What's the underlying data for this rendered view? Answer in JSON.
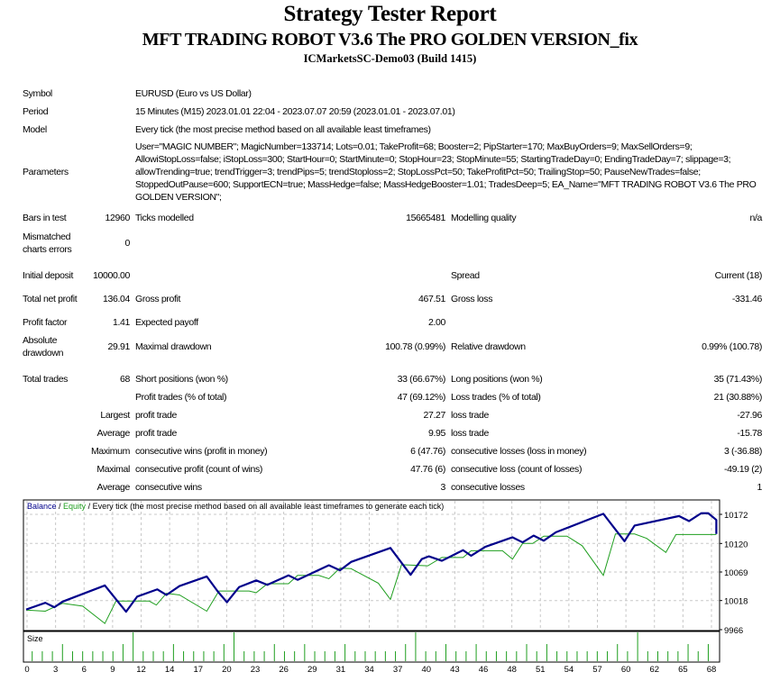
{
  "header": {
    "title": "Strategy Tester Report",
    "expert": "MFT TRADING ROBOT V3.6 The PRO GOLDEN VERSION_fix",
    "server": "ICMarketsSC-Demo03 (Build 1415)"
  },
  "settings": {
    "symbol_label": "Symbol",
    "symbol": "EURUSD (Euro vs US Dollar)",
    "period_label": "Period",
    "period": "15 Minutes (M15) 2023.01.01 22:04 - 2023.07.07 20:59 (2023.01.01 - 2023.07.01)",
    "model_label": "Model",
    "model": "Every tick (the most precise method based on all available least timeframes)",
    "parameters_label": "Parameters",
    "parameters": "User=\"MAGIC NUMBER\"; MagicNumber=133714; Lots=0.01; TakeProfit=68; Booster=2; PipStarter=170; MaxBuyOrders=9; MaxSellOrders=9; AllowiStopLoss=false; iStopLoss=300; StartHour=0; StartMinute=0; StopHour=23; StopMinute=55; StartingTradeDay=0; EndingTradeDay=7; slippage=3; allowTrending=true; trendTrigger=3; trendPips=5; trendStoploss=2; StopLossPct=50; TakeProfitPct=50; TrailingStop=50; PauseNewTrades=false; StoppedOutPause=600; SupportECN=true; MassHedge=false; MassHedgeBooster=1.01; TradesDeep=5; EA_Name=\"MFT TRADING ROBOT V3.6 The PRO GOLDEN VERSION\";"
  },
  "stats": {
    "bars_label": "Bars in test",
    "bars": "12960",
    "ticks_label": "Ticks modelled",
    "ticks": "15665481",
    "quality_label": "Modelling quality",
    "quality": "n/a",
    "mismatch_label": "Mismatched charts errors",
    "mismatch": "0",
    "deposit_label": "Initial deposit",
    "deposit": "10000.00",
    "spread_label": "Spread",
    "spread": "Current (18)",
    "net_label": "Total net profit",
    "net": "136.04",
    "gross_profit_label": "Gross profit",
    "gross_profit": "467.51",
    "gross_loss_label": "Gross loss",
    "gross_loss": "-331.46",
    "pf_label": "Profit factor",
    "pf": "1.41",
    "payoff_label": "Expected payoff",
    "payoff": "2.00",
    "abs_dd_label": "Absolute drawdown",
    "abs_dd": "29.91",
    "max_dd_label": "Maximal drawdown",
    "max_dd": "100.78 (0.99%)",
    "rel_dd_label": "Relative drawdown",
    "rel_dd": "0.99% (100.78)",
    "trades_label": "Total trades",
    "trades": "68",
    "short_label": "Short positions (won %)",
    "short": "33 (66.67%)",
    "long_label": "Long positions (won %)",
    "long": "35 (71.43%)",
    "profit_trades_label": "Profit trades (% of total)",
    "profit_trades": "47 (69.12%)",
    "loss_trades_label": "Loss trades (% of total)",
    "loss_trades": "21 (30.88%)",
    "largest": "Largest",
    "largest_profit_label": "profit trade",
    "largest_profit": "27.27",
    "largest_loss_label": "loss trade",
    "largest_loss": "-27.96",
    "average": "Average",
    "avg_profit_label": "profit trade",
    "avg_profit": "9.95",
    "avg_loss_label": "loss trade",
    "avg_loss": "-15.78",
    "maximum": "Maximum",
    "max_wins_label": "consecutive wins (profit in money)",
    "max_wins": "6 (47.76)",
    "max_losses_label": "consecutive losses (loss in money)",
    "max_losses": "3 (-36.88)",
    "maximal": "Maximal",
    "max_profit_label": "consecutive profit (count of wins)",
    "max_profit": "47.76 (6)",
    "max_loss_label": "consecutive loss (count of losses)",
    "max_loss": "-49.19 (2)",
    "average2": "Average",
    "avg_wins_label": "consecutive wins",
    "avg_wins": "3",
    "avg_losses_label": "consecutive losses",
    "avg_losses": "1"
  },
  "chart_data": {
    "type": "line",
    "legend": {
      "balance": "Balance",
      "sep1": " / ",
      "equity": "Equity",
      "rest": " / Every tick (the most precise method based on all available least timeframes to generate each tick)"
    },
    "colors": {
      "balance": "#00008b",
      "equity": "#1e9e1e",
      "size": "#1e9e1e",
      "grid": "#c8c8c8"
    },
    "ylim": [
      9966,
      10172
    ],
    "yticks": [
      "10172",
      "10120",
      "10069",
      "10018",
      "9966"
    ],
    "ytick_values": [
      10172,
      10120,
      10069,
      10018,
      9966
    ],
    "xticks": [
      "0",
      "3",
      "6",
      "9",
      "12",
      "14",
      "17",
      "20",
      "23",
      "26",
      "29",
      "31",
      "34",
      "37",
      "40",
      "43",
      "46",
      "48",
      "51",
      "54",
      "57",
      "60",
      "62",
      "65",
      "68"
    ],
    "grid": true,
    "series": [
      {
        "name": "Balance",
        "points": [
          [
            0,
            10002
          ],
          [
            1.9,
            10014
          ],
          [
            2.8,
            10006
          ],
          [
            3.6,
            10016
          ],
          [
            7.8,
            10045
          ],
          [
            9.9,
            9998
          ],
          [
            11,
            10025
          ],
          [
            13,
            10038
          ],
          [
            13.9,
            10028
          ],
          [
            15.2,
            10044
          ],
          [
            17.9,
            10061
          ],
          [
            19,
            10034
          ],
          [
            19.9,
            10015
          ],
          [
            21.1,
            10042
          ],
          [
            22.8,
            10054
          ],
          [
            23.9,
            10046
          ],
          [
            26,
            10063
          ],
          [
            26.9,
            10055
          ],
          [
            30,
            10081
          ],
          [
            31.1,
            10072
          ],
          [
            32.2,
            10087
          ],
          [
            36.1,
            10112
          ],
          [
            38.1,
            10064
          ],
          [
            39.2,
            10092
          ],
          [
            39.9,
            10097
          ],
          [
            41.2,
            10089
          ],
          [
            43.3,
            10108
          ],
          [
            44.1,
            10098
          ],
          [
            45.5,
            10114
          ],
          [
            48.2,
            10131
          ],
          [
            49.2,
            10122
          ],
          [
            50.3,
            10134
          ],
          [
            51.3,
            10125
          ],
          [
            52.5,
            10140
          ],
          [
            57.2,
            10173
          ],
          [
            58.4,
            10145
          ],
          [
            59.3,
            10124
          ],
          [
            60.3,
            10152
          ],
          [
            64.7,
            10169
          ],
          [
            65.7,
            10160
          ],
          [
            66.9,
            10174
          ],
          [
            67.6,
            10174
          ],
          [
            68.4,
            10162
          ],
          [
            68.4,
            10137
          ]
        ]
      },
      {
        "name": "Equity",
        "points": [
          [
            0,
            10001
          ],
          [
            1.9,
            9999
          ],
          [
            3.6,
            10013
          ],
          [
            5.6,
            10008
          ],
          [
            7.8,
            9977
          ],
          [
            8.9,
            10017
          ],
          [
            12.2,
            10017
          ],
          [
            12.9,
            10010
          ],
          [
            13.9,
            10031
          ],
          [
            15.2,
            10028
          ],
          [
            17.9,
            9999
          ],
          [
            19.1,
            10035
          ],
          [
            22.1,
            10035
          ],
          [
            22.8,
            10032
          ],
          [
            23.9,
            10048
          ],
          [
            26,
            10048
          ],
          [
            26.9,
            10063
          ],
          [
            29,
            10063
          ],
          [
            30,
            10057
          ],
          [
            31.1,
            10076
          ],
          [
            32.2,
            10075
          ],
          [
            34.9,
            10049
          ],
          [
            36.1,
            10020
          ],
          [
            37.2,
            10082
          ],
          [
            39.8,
            10080
          ],
          [
            41.2,
            10095
          ],
          [
            43.3,
            10095
          ],
          [
            44.1,
            10107
          ],
          [
            47.2,
            10107
          ],
          [
            48.2,
            10092
          ],
          [
            49.2,
            10120
          ],
          [
            50.2,
            10120
          ],
          [
            51.3,
            10133
          ],
          [
            53.6,
            10133
          ],
          [
            55.1,
            10116
          ],
          [
            57.2,
            10063
          ],
          [
            58.4,
            10137
          ],
          [
            60.3,
            10137
          ],
          [
            61.5,
            10129
          ],
          [
            63.4,
            10104
          ],
          [
            64.4,
            10136
          ],
          [
            68.4,
            10136
          ]
        ]
      }
    ],
    "size_label": "Size",
    "size": [
      1,
      1,
      1,
      2,
      1,
      1,
      1,
      1,
      1,
      2,
      4,
      1,
      1,
      1,
      2,
      1,
      1,
      1,
      1,
      2,
      4,
      1,
      1,
      1,
      2,
      1,
      1,
      2,
      1,
      1,
      1,
      2,
      1,
      1,
      1,
      1,
      1,
      2,
      4,
      1,
      1,
      2,
      1,
      1,
      2,
      1,
      1,
      1,
      1,
      2,
      1,
      2,
      1,
      1,
      1,
      1,
      1,
      1,
      2,
      1,
      4,
      1,
      1,
      1,
      1,
      2,
      1,
      2
    ]
  }
}
